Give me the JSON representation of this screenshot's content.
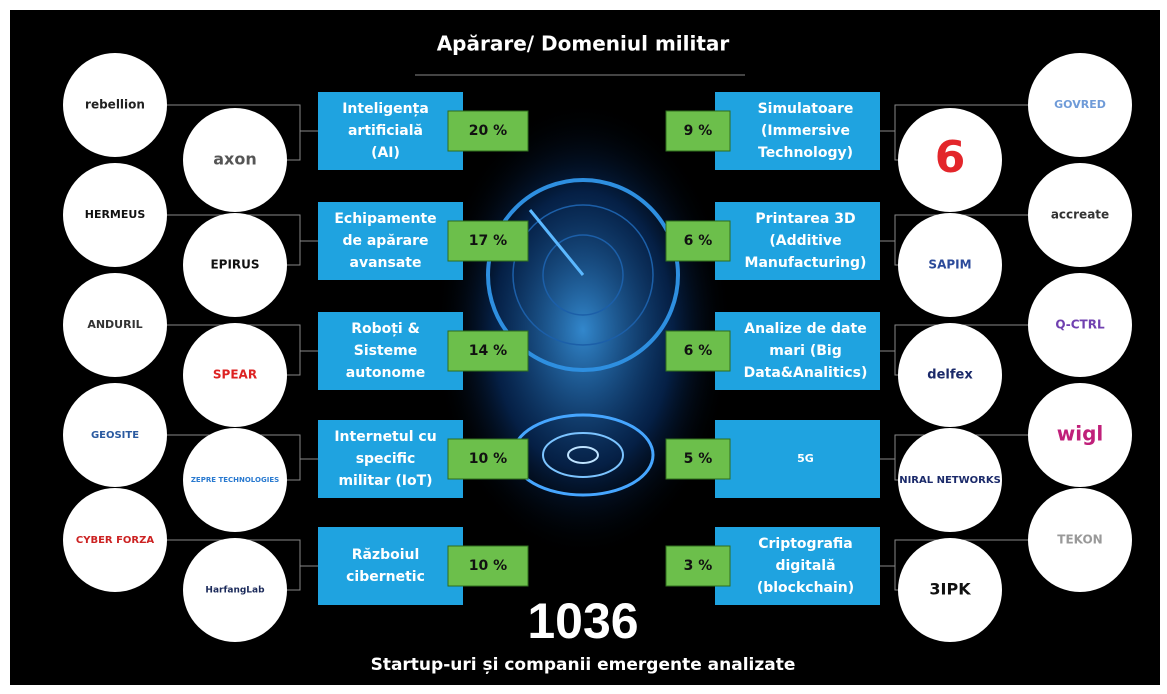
{
  "title": "Apărare/ Domeniul militar",
  "left_segments": [
    {
      "lines": [
        "Inteligența",
        "artificială",
        "(AI)"
      ],
      "share": "20 %"
    },
    {
      "lines": [
        "Echipamente",
        "de apărare",
        "avansate"
      ],
      "share": "17 %"
    },
    {
      "lines": [
        "Roboți &",
        "Sisteme",
        "autonome"
      ],
      "share": "14 %"
    },
    {
      "lines": [
        "Internetul cu",
        "specific",
        "militar (IoT)"
      ],
      "share": "10 %"
    },
    {
      "lines": [
        "Războiul",
        "cibernetic"
      ],
      "share": "10 %"
    }
  ],
  "right_segments": [
    {
      "lines": [
        "Simulatoare",
        "(Immersive",
        "Technology)"
      ],
      "share": "9 %"
    },
    {
      "lines": [
        "Printarea 3D",
        "(Additive",
        "Manufacturing)"
      ],
      "share": "6 %"
    },
    {
      "lines": [
        "Analize de date",
        "mari (Big",
        "Data&Analitics)"
      ],
      "share": "6 %"
    },
    {
      "lines": [
        "5G"
      ],
      "share": "5 %"
    },
    {
      "lines": [
        "Criptografia",
        "digitală",
        "(blockchain)"
      ],
      "share": "3 %"
    }
  ],
  "left_logos": [
    [
      "rebellion",
      "axon"
    ],
    [
      "HERMEUS",
      "EPIRUS"
    ],
    [
      "ANDURIL",
      "SPEAR"
    ],
    [
      "GEOSITE",
      "ZEPRE TECHNOLOGIES"
    ],
    [
      "CYBER FORZA",
      "HarfangLab"
    ]
  ],
  "right_logos": [
    [
      "GOVRED",
      "6"
    ],
    [
      "accreate",
      "SAPIM"
    ],
    [
      "Q-CTRL",
      "delfex"
    ],
    [
      "wigl",
      "NIRAL NETWORKS"
    ],
    [
      "TEKON",
      "3IPK"
    ]
  ],
  "total": "1036",
  "caption": "Startup-uri și companii emergente analizate"
}
